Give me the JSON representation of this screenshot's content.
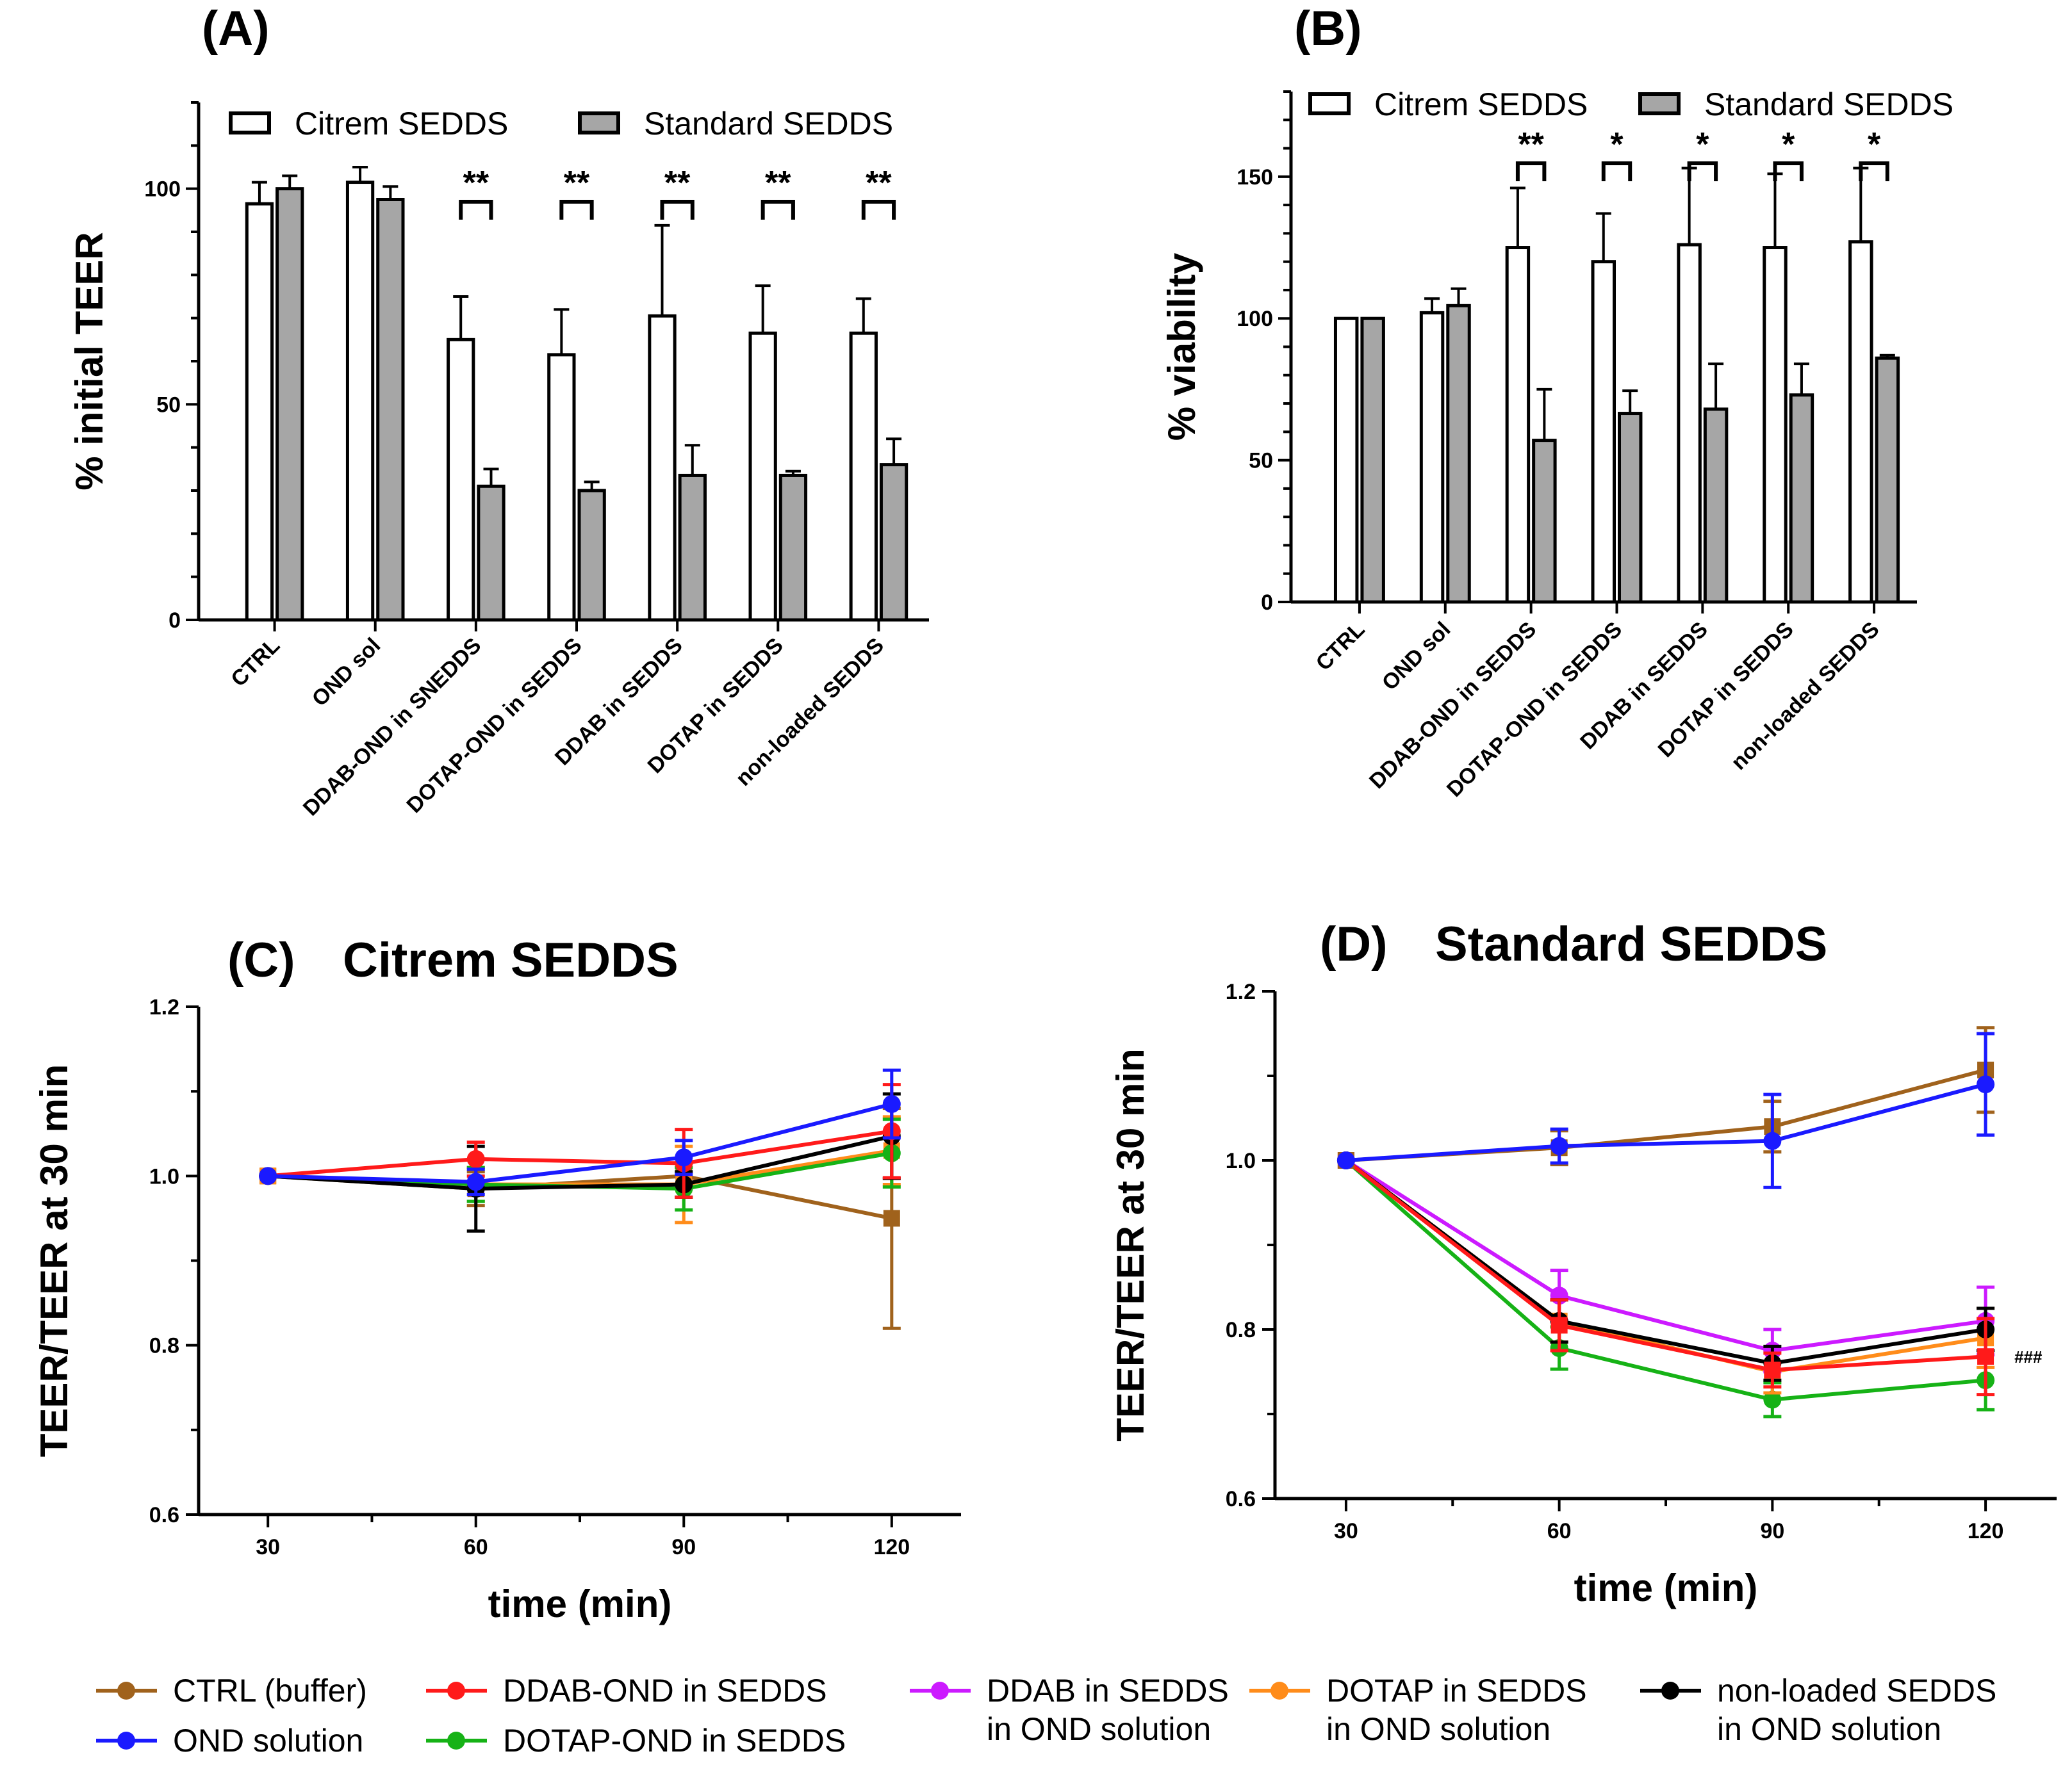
{
  "chart_data": [
    {
      "id": "A",
      "type": "bar",
      "panel_label": "(A)",
      "title": "",
      "xlabel": "",
      "ylabel": "% initial TEER",
      "ylim": [
        0,
        120
      ],
      "yticks": [
        0,
        50,
        100
      ],
      "categories": [
        "CTRL",
        "OND sol",
        "DDAB-OND  in SNEDDS",
        "DOTAP-OND in SEDDS",
        "DDAB in SEDDS",
        "DOTAP in SEDDS",
        "non-loaded SEDDS"
      ],
      "series": [
        {
          "name": "Citrem SEDDS",
          "color": "#ffffff",
          "values": [
            96.5,
            101.5,
            65,
            61.5,
            70.5,
            66.5,
            66.5
          ],
          "errors": [
            5,
            3.5,
            10,
            10.5,
            21,
            11,
            8
          ]
        },
        {
          "name": "Standard SEDDS",
          "color": "#a6a6a6",
          "values": [
            100,
            97.5,
            31,
            30,
            33.5,
            33.5,
            36
          ],
          "errors": [
            3,
            3,
            4,
            2,
            7,
            1,
            6
          ]
        }
      ],
      "significance": [
        {
          "category": 2,
          "label": "**"
        },
        {
          "category": 3,
          "label": "**"
        },
        {
          "category": 4,
          "label": "**"
        },
        {
          "category": 5,
          "label": "**"
        },
        {
          "category": 6,
          "label": "**"
        }
      ],
      "legend_position": "top"
    },
    {
      "id": "B",
      "type": "bar",
      "panel_label": "(B)",
      "title": "",
      "xlabel": "",
      "ylabel": "% viability",
      "ylim": [
        0,
        180
      ],
      "yticks": [
        0,
        50,
        100,
        150
      ],
      "categories": [
        "CTRL",
        "OND sol",
        "DDAB-OND in SEDDS",
        "DOTAP-OND in SEDDS",
        "DDAB in SEDDS",
        "DOTAP in SEDDS",
        "non-loaded SEDDS"
      ],
      "series": [
        {
          "name": "Citrem SEDDS",
          "color": "#ffffff",
          "values": [
            100,
            102,
            125,
            120,
            126,
            125,
            127
          ],
          "errors": [
            0,
            5,
            21,
            17,
            27,
            26,
            26
          ]
        },
        {
          "name": "Standard SEDDS",
          "color": "#a6a6a6",
          "values": [
            100,
            104.5,
            57,
            66.5,
            68,
            73,
            86
          ],
          "errors": [
            0,
            6,
            18,
            8,
            16,
            11,
            1
          ]
        }
      ],
      "significance": [
        {
          "category": 2,
          "label": "**"
        },
        {
          "category": 3,
          "label": "*"
        },
        {
          "category": 4,
          "label": "*"
        },
        {
          "category": 5,
          "label": "*"
        },
        {
          "category": 6,
          "label": "*"
        }
      ],
      "legend_position": "top"
    },
    {
      "id": "C",
      "type": "line",
      "panel_label": "(C)",
      "title": "Citrem SEDDS",
      "xlabel": "time (min)",
      "ylabel": "TEER/TEER at 30 min",
      "x": [
        30,
        60,
        90,
        120
      ],
      "xlim": [
        20,
        130
      ],
      "ylim": [
        0.6,
        1.2
      ],
      "yticks": [
        0.6,
        0.8,
        1.0,
        1.2
      ],
      "ytick_labels": [
        "0.6",
        "0.8",
        "1.0",
        "1.2"
      ],
      "series": [
        {
          "name": "CTRL (buffer)",
          "color": "#a0621c",
          "marker": "square",
          "values": [
            1.0,
            0.985,
            1.0,
            0.95
          ],
          "errors": [
            0,
            0.02,
            0.015,
            0.13
          ]
        },
        {
          "name": "DOTAP in SEDDS in OND solution",
          "color": "#ff8c1a",
          "marker": "square",
          "values": [
            1.0,
            0.99,
            0.99,
            1.03
          ],
          "errors": [
            0,
            0.02,
            0.045,
            0.04
          ]
        },
        {
          "name": "DOTAP-OND in SEDDS",
          "color": "#16b216",
          "marker": "circle",
          "values": [
            1.0,
            0.99,
            0.985,
            1.027
          ],
          "errors": [
            0,
            0.02,
            0.025,
            0.04
          ]
        },
        {
          "name": "non-loaded SEDDS in OND solution",
          "color": "#000000",
          "marker": "circle",
          "values": [
            1.0,
            0.985,
            0.99,
            1.047
          ],
          "errors": [
            0,
            0.05,
            0.015,
            0.05
          ]
        },
        {
          "name": "DDAB-OND in SEDDS",
          "color": "#ff1a1a",
          "marker": "circle",
          "values": [
            1.0,
            1.02,
            1.015,
            1.053
          ],
          "errors": [
            0,
            0.02,
            0.04,
            0.055
          ]
        },
        {
          "name": "OND solution",
          "color": "#1a1aff",
          "marker": "circle",
          "values": [
            1.0,
            0.993,
            1.022,
            1.085
          ],
          "errors": [
            0,
            0.015,
            0.02,
            0.04
          ]
        }
      ]
    },
    {
      "id": "D",
      "type": "line",
      "panel_label": "(D)",
      "title": "Standard SEDDS",
      "xlabel": "time (min)",
      "ylabel": "TEER/TEER at 30 min",
      "x": [
        30,
        60,
        90,
        120
      ],
      "xlim": [
        20,
        130
      ],
      "ylim": [
        0.6,
        1.2
      ],
      "yticks": [
        0.6,
        0.8,
        1.0,
        1.2
      ],
      "ytick_labels": [
        "0.6",
        "0.8",
        "1.0",
        "1.2"
      ],
      "annotation": "###",
      "series": [
        {
          "name": "DOTAP-OND in SEDDS",
          "color": "#16b216",
          "marker": "circle",
          "values": [
            1.0,
            0.778,
            0.717,
            0.74
          ],
          "errors": [
            0,
            0.025,
            0.02,
            0.035
          ]
        },
        {
          "name": "DOTAP in SEDDS in OND solution",
          "color": "#ff8c1a",
          "marker": "square",
          "values": [
            1.0,
            0.81,
            0.75,
            0.79
          ],
          "errors": [
            0,
            0.025,
            0.025,
            0.035
          ]
        },
        {
          "name": "DDAB in SEDDS in OND solution",
          "color": "#cc1aff",
          "marker": "circle",
          "values": [
            1.0,
            0.84,
            0.775,
            0.81
          ],
          "errors": [
            0,
            0.03,
            0.025,
            0.04
          ]
        },
        {
          "name": "non-loaded SEDDS in OND solution",
          "color": "#000000",
          "marker": "circle",
          "values": [
            1.0,
            0.81,
            0.76,
            0.8
          ],
          "errors": [
            0,
            0.025,
            0.02,
            0.025
          ]
        },
        {
          "name": "DDAB-OND in SEDDS",
          "color": "#ff1a1a",
          "marker": "square",
          "values": [
            1.0,
            0.805,
            0.752,
            0.768
          ],
          "errors": [
            0,
            0.03,
            0.02,
            0.045
          ]
        },
        {
          "name": "CTRL (buffer)",
          "color": "#a0621c",
          "marker": "square",
          "values": [
            1.0,
            1.015,
            1.04,
            1.107
          ],
          "errors": [
            0,
            0.02,
            0.03,
            0.05
          ]
        },
        {
          "name": "OND solution",
          "color": "#1a1aff",
          "marker": "circle",
          "values": [
            1.0,
            1.017,
            1.023,
            1.09
          ],
          "errors": [
            0,
            0.02,
            0.055,
            0.06
          ]
        }
      ]
    }
  ],
  "legend_shared": {
    "items": [
      {
        "line1": "CTRL (buffer)",
        "line2": "",
        "color": "#a0621c"
      },
      {
        "line1": "OND solution",
        "line2": "",
        "color": "#1a1aff"
      },
      {
        "line1": "DDAB-OND in SEDDS",
        "line2": "",
        "color": "#ff1a1a"
      },
      {
        "line1": "DOTAP-OND in SEDDS",
        "line2": "",
        "color": "#16b216"
      },
      {
        "line1": "DDAB in SEDDS",
        "line2": "in OND solution",
        "color": "#cc1aff"
      },
      {
        "line1": "DOTAP in SEDDS",
        "line2": "in OND solution",
        "color": "#ff8c1a"
      },
      {
        "line1": "non-loaded SEDDS",
        "line2": "in OND solution",
        "color": "#000000"
      }
    ]
  }
}
